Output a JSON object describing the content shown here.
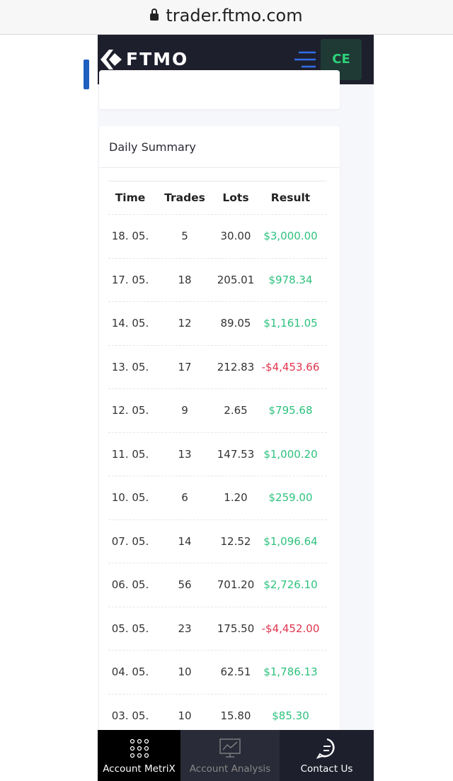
{
  "browser": {
    "url": "trader.ftmo.com"
  },
  "header": {
    "logo": "FTMO",
    "avatar": "CE"
  },
  "summary": {
    "title": "Daily Summary",
    "table": {
      "headers": [
        "Time",
        "Trades",
        "Lots",
        "Result"
      ],
      "rows": [
        [
          "18. 05.",
          "5",
          "30.00",
          "$3,000.00"
        ],
        [
          "17. 05.",
          "18",
          "205.01",
          "$978.34"
        ],
        [
          "14. 05.",
          "12",
          "89.05",
          "$1,161.05"
        ],
        [
          "13. 05.",
          "17",
          "212.83",
          "-$4,453.66"
        ],
        [
          "12. 05.",
          "9",
          "2.65",
          "$795.68"
        ],
        [
          "11. 05.",
          "13",
          "147.53",
          "$1,000.20"
        ],
        [
          "10. 05.",
          "6",
          "1.20",
          "$259.00"
        ],
        [
          "07. 05.",
          "14",
          "12.52",
          "$1,096.64"
        ],
        [
          "06. 05.",
          "56",
          "701.20",
          "$2,726.10"
        ],
        [
          "05. 05.",
          "23",
          "175.50",
          "-$4,452.00"
        ],
        [
          "04. 05.",
          "10",
          "62.51",
          "$1,786.13"
        ],
        [
          "03. 05.",
          "10",
          "15.80",
          "$85.30"
        ]
      ]
    }
  },
  "nav": {
    "items": [
      "Account MetriX",
      "Account Analysis",
      "Contact Us"
    ]
  }
}
